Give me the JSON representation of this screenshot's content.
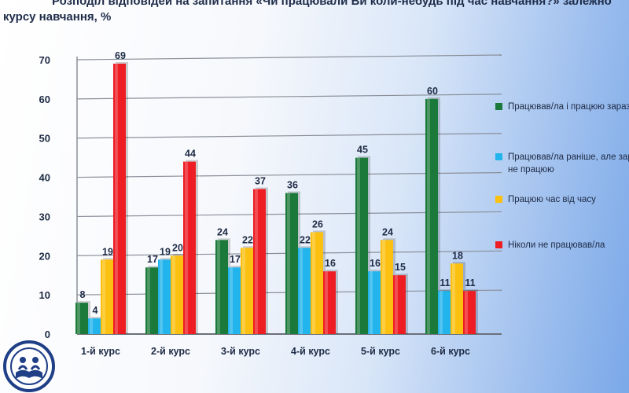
{
  "chart_data": {
    "type": "bar",
    "title": "Розподіл відповідей на запитання «Чи працювали Ви коли-небудь під час навчання?» залежно курсу навчання, %",
    "categories": [
      "1-й курс",
      "2-й курс",
      "3-й курс",
      "4-й курс",
      "5-й курс",
      "6-й курс"
    ],
    "series": [
      {
        "name": "Працював/ла і працюю зараз",
        "color": "#1b7a3a",
        "values": [
          8,
          17,
          24,
          36,
          45,
          60
        ]
      },
      {
        "name": "Працював/ла раніше, але зараз не працюю",
        "color": "#22b4ec",
        "values": [
          4,
          19,
          17,
          22,
          16,
          11
        ]
      },
      {
        "name": "Працюю час від часу",
        "color": "#fcc010",
        "values": [
          19,
          20,
          22,
          26,
          24,
          18
        ]
      },
      {
        "name": "Ніколи не працював/ла",
        "color": "#ee1d23",
        "values": [
          69,
          44,
          37,
          16,
          15,
          11
        ]
      }
    ],
    "ylim": [
      0,
      70
    ],
    "yticks": [
      0,
      10,
      20,
      30,
      40,
      50,
      60,
      70
    ],
    "xlabel": "",
    "ylabel": "",
    "grid": true,
    "legend_position": "right"
  },
  "logo": {
    "icon": "university-book-emblem-icon"
  }
}
